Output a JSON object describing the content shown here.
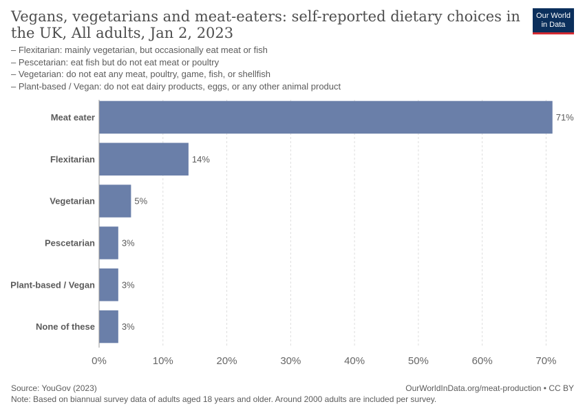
{
  "header": {
    "title": "Vegans, vegetarians and meat-eaters: self-reported dietary choices in the UK, All adults, Jan 2, 2023",
    "subtitle_lines": [
      "– Flexitarian: mainly vegetarian, but occasionally eat meat or fish",
      "– Pescetarian: eat fish but do not eat meat or poultry",
      "– Vegetarian: do not eat any meat, poultry, game, fish, or shellfish",
      "– Plant-based / Vegan: do not eat dairy products, eggs, or any other animal product"
    ]
  },
  "logo": {
    "line1": "Our World",
    "line2": "in Data",
    "bg": "#0b2f5c",
    "accent": "#d42b32"
  },
  "chart_data": {
    "type": "bar",
    "orientation": "horizontal",
    "categories": [
      "Meat eater",
      "Flexitarian",
      "Vegetarian",
      "Pescetarian",
      "Plant-based / Vegan",
      "None of these"
    ],
    "values": [
      71,
      14,
      5,
      3,
      3,
      3
    ],
    "value_labels": [
      "71%",
      "14%",
      "5%",
      "3%",
      "3%",
      "3%"
    ],
    "x_ticks": [
      0,
      10,
      20,
      30,
      40,
      50,
      60,
      70
    ],
    "x_tick_labels": [
      "0%",
      "10%",
      "20%",
      "30%",
      "40%",
      "50%",
      "60%",
      "70%"
    ],
    "xlim": [
      0,
      72
    ],
    "bar_color": "#6a7fa9",
    "grid": true
  },
  "footer": {
    "source": "Source: YouGov (2023)",
    "credit": "OurWorldInData.org/meat-production • CC BY",
    "note": "Note: Based on biannual survey data of adults aged 18 years and older. Around 2000 adults are included per survey."
  }
}
